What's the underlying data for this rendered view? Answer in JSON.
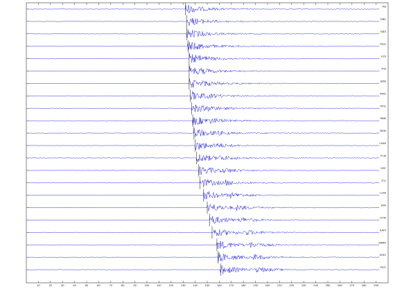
{
  "chart_data": {
    "type": "seismogram",
    "color": "#1f1fe6",
    "xlim": [
      0,
      300
    ],
    "xticks": [
      10,
      20,
      30,
      40,
      50,
      60,
      70,
      80,
      90,
      100,
      110,
      120,
      130,
      140,
      150,
      160,
      170,
      180,
      190,
      200,
      210,
      220,
      230,
      240,
      250,
      260,
      270,
      280,
      290
    ],
    "series": [
      {
        "name": "PB",
        "onset": 132
      },
      {
        "name": "GBK",
        "onset": 133
      },
      {
        "name": "KBS",
        "onset": 133
      },
      {
        "name": "PDG",
        "onset": 134
      },
      {
        "name": "KOI",
        "onset": 135
      },
      {
        "name": "PSI",
        "onset": 135
      },
      {
        "name": "BKB",
        "onset": 135
      },
      {
        "name": "PMG",
        "onset": 136
      },
      {
        "name": "PPG",
        "onset": 137
      },
      {
        "name": "SBM",
        "onset": 138
      },
      {
        "name": "BSM",
        "onset": 139
      },
      {
        "name": "LHMI",
        "onset": 140
      },
      {
        "name": "FLM",
        "onset": 141
      },
      {
        "name": "SSF",
        "onset": 143
      },
      {
        "name": "JTU",
        "onset": 144
      },
      {
        "name": "LUW",
        "onset": 147
      },
      {
        "name": "SWI",
        "onset": 150
      },
      {
        "name": "GTM",
        "onset": 152
      },
      {
        "name": "KAPI",
        "onset": 154
      },
      {
        "name": "MMRI",
        "onset": 158
      },
      {
        "name": "SOEI",
        "onset": 159
      },
      {
        "name": "TNTI",
        "onset": 161
      }
    ]
  }
}
